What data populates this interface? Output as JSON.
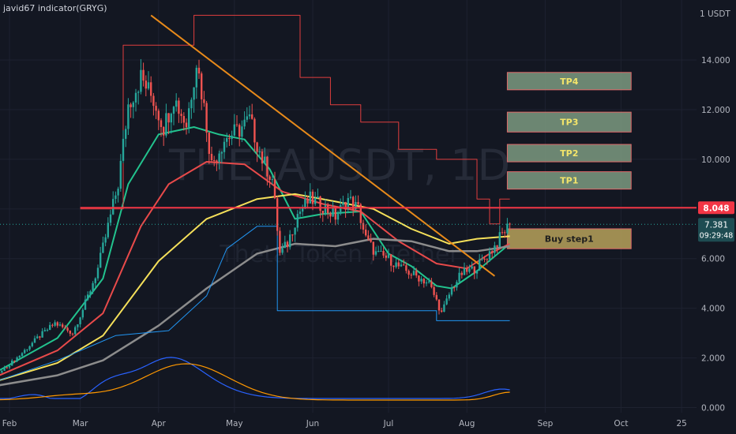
{
  "indicator_label": "javid67 indicator(GRYG)",
  "watermark": {
    "symbol": "THETAUSDT, 1D",
    "name": "Theta Token / Tether"
  },
  "colors": {
    "background": "#131722",
    "grid": "#1e2230",
    "axis_text": "#b2b5be",
    "candle_up": "#26a69a",
    "candle_down": "#ef5350",
    "ema_fast": "#22c38e",
    "ema_mid": "#e84a4a",
    "ema_slow": "#f5e05a",
    "sma_long": "#8c8c8c",
    "upper_channel": "#e03e3e",
    "lower_channel": "#2196f3",
    "trendline": "#e88a1a",
    "resistance_line": "#f23645",
    "tp_fill": "#7c9a80",
    "tp_text": "#f4e56a",
    "buy_fill": "#b8a25a",
    "buy_text": "#1e1e1e",
    "osc_blue": "#2962ff",
    "osc_orange": "#ff9800"
  },
  "chart_data": {
    "type": "candlestick",
    "y_axis": {
      "unit_label": "USDT",
      "unit_tick": "1",
      "ticks": [
        {
          "value": 14,
          "label": "14.000"
        },
        {
          "value": 12,
          "label": "12.000"
        },
        {
          "value": 10,
          "label": "10.000"
        },
        {
          "value": 8,
          "label": "8.000"
        },
        {
          "value": 6,
          "label": "6.000"
        },
        {
          "value": 4,
          "label": "4.000"
        },
        {
          "value": 2,
          "label": "2.000"
        },
        {
          "value": 0,
          "label": "0.000"
        }
      ],
      "ylim": [
        0,
        16.3
      ]
    },
    "x_axis": {
      "ticks": [
        {
          "label": "Feb",
          "date": "2021-02-01"
        },
        {
          "label": "Mar",
          "date": "2021-03-01"
        },
        {
          "label": "Apr",
          "date": "2021-04-01"
        },
        {
          "label": "May",
          "date": "2021-05-01"
        },
        {
          "label": "Jun",
          "date": "2021-06-01"
        },
        {
          "label": "Jul",
          "date": "2021-07-01"
        },
        {
          "label": "Aug",
          "date": "2021-08-01"
        },
        {
          "label": "Sep",
          "date": "2021-09-01"
        },
        {
          "label": "Oct",
          "date": "2021-10-01"
        },
        {
          "label": "25",
          "date": "2021-10-25"
        }
      ]
    },
    "price_path": [
      [
        "2021-01-28",
        1.4
      ],
      [
        "2021-02-05",
        2.1
      ],
      [
        "2021-02-12",
        2.8
      ],
      [
        "2021-02-19",
        3.4
      ],
      [
        "2021-02-26",
        3.0
      ],
      [
        "2021-03-03",
        4.2
      ],
      [
        "2021-03-08",
        5.6
      ],
      [
        "2021-03-12",
        7.3
      ],
      [
        "2021-03-16",
        9.0
      ],
      [
        "2021-03-20",
        12.2
      ],
      [
        "2021-03-25",
        13.3
      ],
      [
        "2021-03-30",
        12.4
      ],
      [
        "2021-04-03",
        11.3
      ],
      [
        "2021-04-07",
        12.5
      ],
      [
        "2021-04-12",
        11.4
      ],
      [
        "2021-04-16",
        14.0
      ],
      [
        "2021-04-19",
        12.1
      ],
      [
        "2021-04-22",
        9.8
      ],
      [
        "2021-04-27",
        10.8
      ],
      [
        "2021-05-03",
        11.2
      ],
      [
        "2021-05-07",
        11.6
      ],
      [
        "2021-05-12",
        10.0
      ],
      [
        "2021-05-16",
        9.2
      ],
      [
        "2021-05-19",
        6.2
      ],
      [
        "2021-05-22",
        6.6
      ],
      [
        "2021-05-26",
        7.8
      ],
      [
        "2021-05-31",
        8.4
      ],
      [
        "2021-06-05",
        8.1
      ],
      [
        "2021-06-10",
        7.7
      ],
      [
        "2021-06-15",
        8.4
      ],
      [
        "2021-06-19",
        8.0
      ],
      [
        "2021-06-22",
        6.8
      ],
      [
        "2021-06-26",
        6.2
      ],
      [
        "2021-07-01",
        6.0
      ],
      [
        "2021-07-06",
        5.6
      ],
      [
        "2021-07-12",
        5.3
      ],
      [
        "2021-07-17",
        5.0
      ],
      [
        "2021-07-20",
        4.3
      ],
      [
        "2021-07-22",
        3.8
      ],
      [
        "2021-07-26",
        4.8
      ],
      [
        "2021-07-30",
        5.4
      ],
      [
        "2021-08-04",
        5.6
      ],
      [
        "2021-08-08",
        6.0
      ],
      [
        "2021-08-12",
        6.5
      ],
      [
        "2021-08-15",
        7.0
      ],
      [
        "2021-08-18",
        7.38
      ]
    ],
    "series": [
      {
        "name": "ema_fast",
        "points": [
          [
            "2021-01-28",
            1.5
          ],
          [
            "2021-02-20",
            2.8
          ],
          [
            "2021-03-10",
            5.2
          ],
          [
            "2021-03-20",
            9.0
          ],
          [
            "2021-04-01",
            11.0
          ],
          [
            "2021-04-15",
            11.3
          ],
          [
            "2021-04-25",
            11.0
          ],
          [
            "2021-05-05",
            10.8
          ],
          [
            "2021-05-15",
            9.6
          ],
          [
            "2021-05-25",
            7.6
          ],
          [
            "2021-06-05",
            7.8
          ],
          [
            "2021-06-20",
            7.9
          ],
          [
            "2021-07-01",
            6.2
          ],
          [
            "2021-07-10",
            5.7
          ],
          [
            "2021-07-20",
            4.9
          ],
          [
            "2021-07-26",
            4.8
          ],
          [
            "2021-08-05",
            5.5
          ],
          [
            "2021-08-18",
            6.6
          ]
        ]
      },
      {
        "name": "ema_mid",
        "points": [
          [
            "2021-01-28",
            1.3
          ],
          [
            "2021-02-20",
            2.3
          ],
          [
            "2021-03-10",
            3.8
          ],
          [
            "2021-03-25",
            7.3
          ],
          [
            "2021-04-05",
            9.0
          ],
          [
            "2021-04-20",
            9.9
          ],
          [
            "2021-05-05",
            9.8
          ],
          [
            "2021-05-20",
            8.7
          ],
          [
            "2021-06-05",
            8.2
          ],
          [
            "2021-06-20",
            7.9
          ],
          [
            "2021-07-05",
            6.7
          ],
          [
            "2021-07-20",
            5.8
          ],
          [
            "2021-08-01",
            5.6
          ],
          [
            "2021-08-10",
            6.2
          ],
          [
            "2021-08-18",
            6.6
          ]
        ]
      },
      {
        "name": "ema_slow",
        "points": [
          [
            "2021-01-28",
            1.1
          ],
          [
            "2021-02-20",
            1.8
          ],
          [
            "2021-03-10",
            2.9
          ],
          [
            "2021-04-01",
            5.9
          ],
          [
            "2021-04-20",
            7.6
          ],
          [
            "2021-05-10",
            8.4
          ],
          [
            "2021-05-25",
            8.6
          ],
          [
            "2021-06-10",
            8.3
          ],
          [
            "2021-06-25",
            8.0
          ],
          [
            "2021-07-10",
            7.2
          ],
          [
            "2021-07-25",
            6.6
          ],
          [
            "2021-08-05",
            6.8
          ],
          [
            "2021-08-18",
            6.9
          ]
        ]
      },
      {
        "name": "sma_long",
        "points": [
          [
            "2021-01-28",
            0.9
          ],
          [
            "2021-02-20",
            1.3
          ],
          [
            "2021-03-10",
            1.9
          ],
          [
            "2021-04-01",
            3.3
          ],
          [
            "2021-04-20",
            4.8
          ],
          [
            "2021-05-10",
            6.2
          ],
          [
            "2021-05-25",
            6.6
          ],
          [
            "2021-06-10",
            6.5
          ],
          [
            "2021-06-25",
            6.8
          ],
          [
            "2021-07-10",
            6.7
          ],
          [
            "2021-07-25",
            6.3
          ],
          [
            "2021-08-05",
            6.3
          ],
          [
            "2021-08-18",
            6.5
          ]
        ]
      },
      {
        "name": "upper_channel",
        "points": [
          [
            "2021-03-01",
            8.0
          ],
          [
            "2021-03-18",
            8.0
          ],
          [
            "2021-03-18",
            14.6
          ],
          [
            "2021-04-15",
            14.6
          ],
          [
            "2021-04-15",
            15.8
          ],
          [
            "2021-05-27",
            15.8
          ],
          [
            "2021-05-27",
            13.3
          ],
          [
            "2021-06-08",
            13.3
          ],
          [
            "2021-06-08",
            12.2
          ],
          [
            "2021-06-20",
            12.2
          ],
          [
            "2021-06-20",
            11.5
          ],
          [
            "2021-07-05",
            11.5
          ],
          [
            "2021-07-05",
            10.4
          ],
          [
            "2021-07-20",
            10.4
          ],
          [
            "2021-07-20",
            10.0
          ],
          [
            "2021-08-05",
            10.0
          ],
          [
            "2021-08-05",
            8.4
          ],
          [
            "2021-08-10",
            8.4
          ],
          [
            "2021-08-10",
            7.4
          ],
          [
            "2021-08-14",
            7.4
          ],
          [
            "2021-08-14",
            8.4
          ],
          [
            "2021-08-18",
            8.4
          ]
        ]
      },
      {
        "name": "lower_channel",
        "points": [
          [
            "2021-01-28",
            1.1
          ],
          [
            "2021-02-20",
            1.9
          ],
          [
            "2021-03-15",
            2.9
          ],
          [
            "2021-04-05",
            3.1
          ],
          [
            "2021-04-20",
            4.5
          ],
          [
            "2021-04-28",
            6.4
          ],
          [
            "2021-05-10",
            7.3
          ],
          [
            "2021-05-18",
            7.3
          ],
          [
            "2021-05-18",
            3.9
          ],
          [
            "2021-07-20",
            3.9
          ],
          [
            "2021-07-20",
            3.5
          ],
          [
            "2021-08-18",
            3.5
          ]
        ]
      },
      {
        "name": "trendline",
        "points": [
          [
            "2021-03-29",
            15.8
          ],
          [
            "2021-08-12",
            5.3
          ]
        ]
      }
    ],
    "resistance": {
      "value": 8.048,
      "label": "8.048",
      "from": "2021-03-01"
    },
    "last_price": {
      "value": 7.381,
      "label": "7.381",
      "countdown": "09:29:48"
    },
    "targets": [
      {
        "label": "TP4",
        "low": 12.8,
        "high": 13.5
      },
      {
        "label": "TP3",
        "low": 11.1,
        "high": 11.9
      },
      {
        "label": "TP2",
        "low": 9.9,
        "high": 10.6
      },
      {
        "label": "TP1",
        "low": 8.8,
        "high": 9.5
      }
    ],
    "buy_zone": {
      "label": "Buy step1",
      "low": 6.4,
      "high": 7.2
    },
    "target_box_dates": [
      "2021-08-17",
      "2021-10-05"
    ]
  }
}
